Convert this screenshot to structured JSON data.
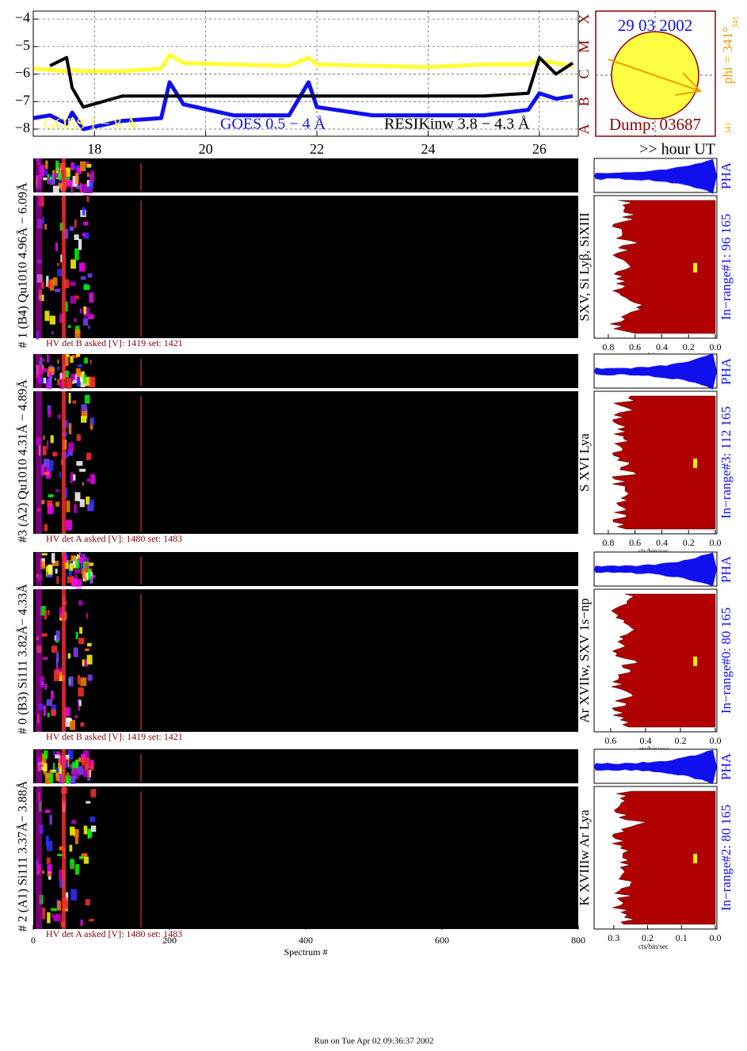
{
  "chart_data": {
    "type": "line",
    "x": [
      16.9,
      17.2,
      17.5,
      17.6,
      17.8,
      18.5,
      19.2,
      19.35,
      19.6,
      20.5,
      21.5,
      21.85,
      22.0,
      23,
      24,
      25,
      25.8,
      26.0,
      26.3,
      26.6
    ],
    "series": [
      {
        "name": "GOES 1 − 8 Å",
        "color": "#ffff33",
        "values": [
          -5.8,
          -5.85,
          -5.9,
          -5.85,
          -5.9,
          -5.9,
          -5.8,
          -5.3,
          -5.6,
          -5.65,
          -5.7,
          -5.4,
          -5.65,
          -5.7,
          -5.75,
          -5.65,
          -5.65,
          -5.5,
          -5.6,
          -5.7
        ]
      },
      {
        "name": "GOES 0.5 − 4 Å",
        "color": "#1010ee",
        "values": [
          -7.6,
          -7.5,
          -7.8,
          -7.4,
          -8.0,
          -7.7,
          -7.6,
          -6.3,
          -7.1,
          -7.5,
          -7.5,
          -6.3,
          -7.2,
          -7.5,
          -7.5,
          -7.5,
          -7.3,
          -6.7,
          -6.9,
          -6.8
        ]
      },
      {
        "name": "RESIKinw 3.8 − 4.3 Å",
        "color": "#000000",
        "values": [
          null,
          -5.7,
          -5.4,
          -6.5,
          -7.2,
          -6.8,
          -6.8,
          -6.8,
          -6.8,
          -6.8,
          -6.8,
          -6.8,
          -6.8,
          -6.8,
          -6.8,
          -6.8,
          -6.7,
          -5.4,
          -6.0,
          -5.6
        ]
      }
    ],
    "x_label": ">> hour UT",
    "xlim": [
      16.9,
      26.7
    ],
    "xticks": [
      18,
      20,
      22,
      24,
      26
    ],
    "ylim": [
      -8.26,
      -3.71
    ],
    "yticks": [
      {
        "value": -4,
        "label": "−4"
      },
      {
        "value": -5,
        "label": "−5"
      },
      {
        "value": -6,
        "label": "−6"
      },
      {
        "value": -7,
        "label": "−7"
      },
      {
        "value": -8,
        "label": "−8"
      }
    ],
    "y2lim": [
      -8.26,
      -3.71
    ],
    "y2ticks": [
      {
        "value": -8,
        "label": "A"
      },
      {
        "value": -7,
        "label": "B"
      },
      {
        "value": -6,
        "label": "C"
      },
      {
        "value": -5,
        "label": "M"
      },
      {
        "value": -4,
        "label": "X"
      }
    ],
    "grid": true
  },
  "sun": {
    "date": "29 03 2002",
    "dump": "Dump: 03687",
    "phi": "phi = 341°",
    "phi_sub": "341",
    "phi_low": "341"
  },
  "detectors": [
    {
      "label": "# 1 (B4) Qu1010 4.96Å − 6.09Å",
      "lines": "SXV, Si Lyβ, SiXIII",
      "pha": "PHA",
      "in_range": "In−range#1:  96 165",
      "hv": "HV det B asked [V]:  1419 set:  1421",
      "hist_xlim": [
        0.906,
        0
      ],
      "hist_ticks": [
        0.8,
        0.6,
        0.4,
        0.2,
        {
          "value": 0,
          "label": "0.0"
        }
      ],
      "hist_unit": "cts/bin/sec"
    },
    {
      "label": "#3 (A2) Qu1010  4.31Å − 4.89Å",
      "lines": "S XVI Lya",
      "pha": "PHA",
      "in_range": "In−range#3:  112 165",
      "hv": "HV det A asked [V]:  1480 set:  1483",
      "hist_xlim": [
        0.906,
        0
      ],
      "hist_ticks": [
        0.8,
        0.6,
        0.4,
        0.2,
        {
          "value": 0,
          "label": "0.0"
        }
      ],
      "hist_unit": "cts/bin/sec"
    },
    {
      "label": "# 0 (B3) Si111  3.82Å− 4.33Å",
      "lines": "Ar XVIIw,  SXV 1s−np",
      "pha": "PHA",
      "in_range": "In−range#0:  80 165",
      "hv": "HV det B asked [V]:  1419 set:  1421",
      "hist_xlim": [
        0.695,
        0
      ],
      "hist_ticks": [
        0.6,
        0.4,
        0.2,
        {
          "value": 0,
          "label": "0.0"
        }
      ],
      "hist_unit": "cts/bin/sec"
    },
    {
      "label": "# 2 (A1) Si111  3.37Å− 3.88Å",
      "lines": "K XVIIIw  Ar Lya",
      "pha": "PHA",
      "in_range": "In−range#2:  80 165",
      "hv": "HV det A asked [V]:  1480 set:  1483",
      "hist_xlim": [
        0.358,
        0
      ],
      "hist_ticks": [
        0.3,
        0.2,
        0.1,
        {
          "value": 0,
          "label": "0.0"
        }
      ],
      "hist_unit": "cts/bin/sec"
    }
  ],
  "spectrum_axis": {
    "label": "Spectrum #",
    "xlim": [
      0,
      800
    ],
    "xticks": [
      0,
      200,
      400,
      600,
      800
    ]
  },
  "footer": "Run on Tue Apr 02 09:36:37 2002"
}
